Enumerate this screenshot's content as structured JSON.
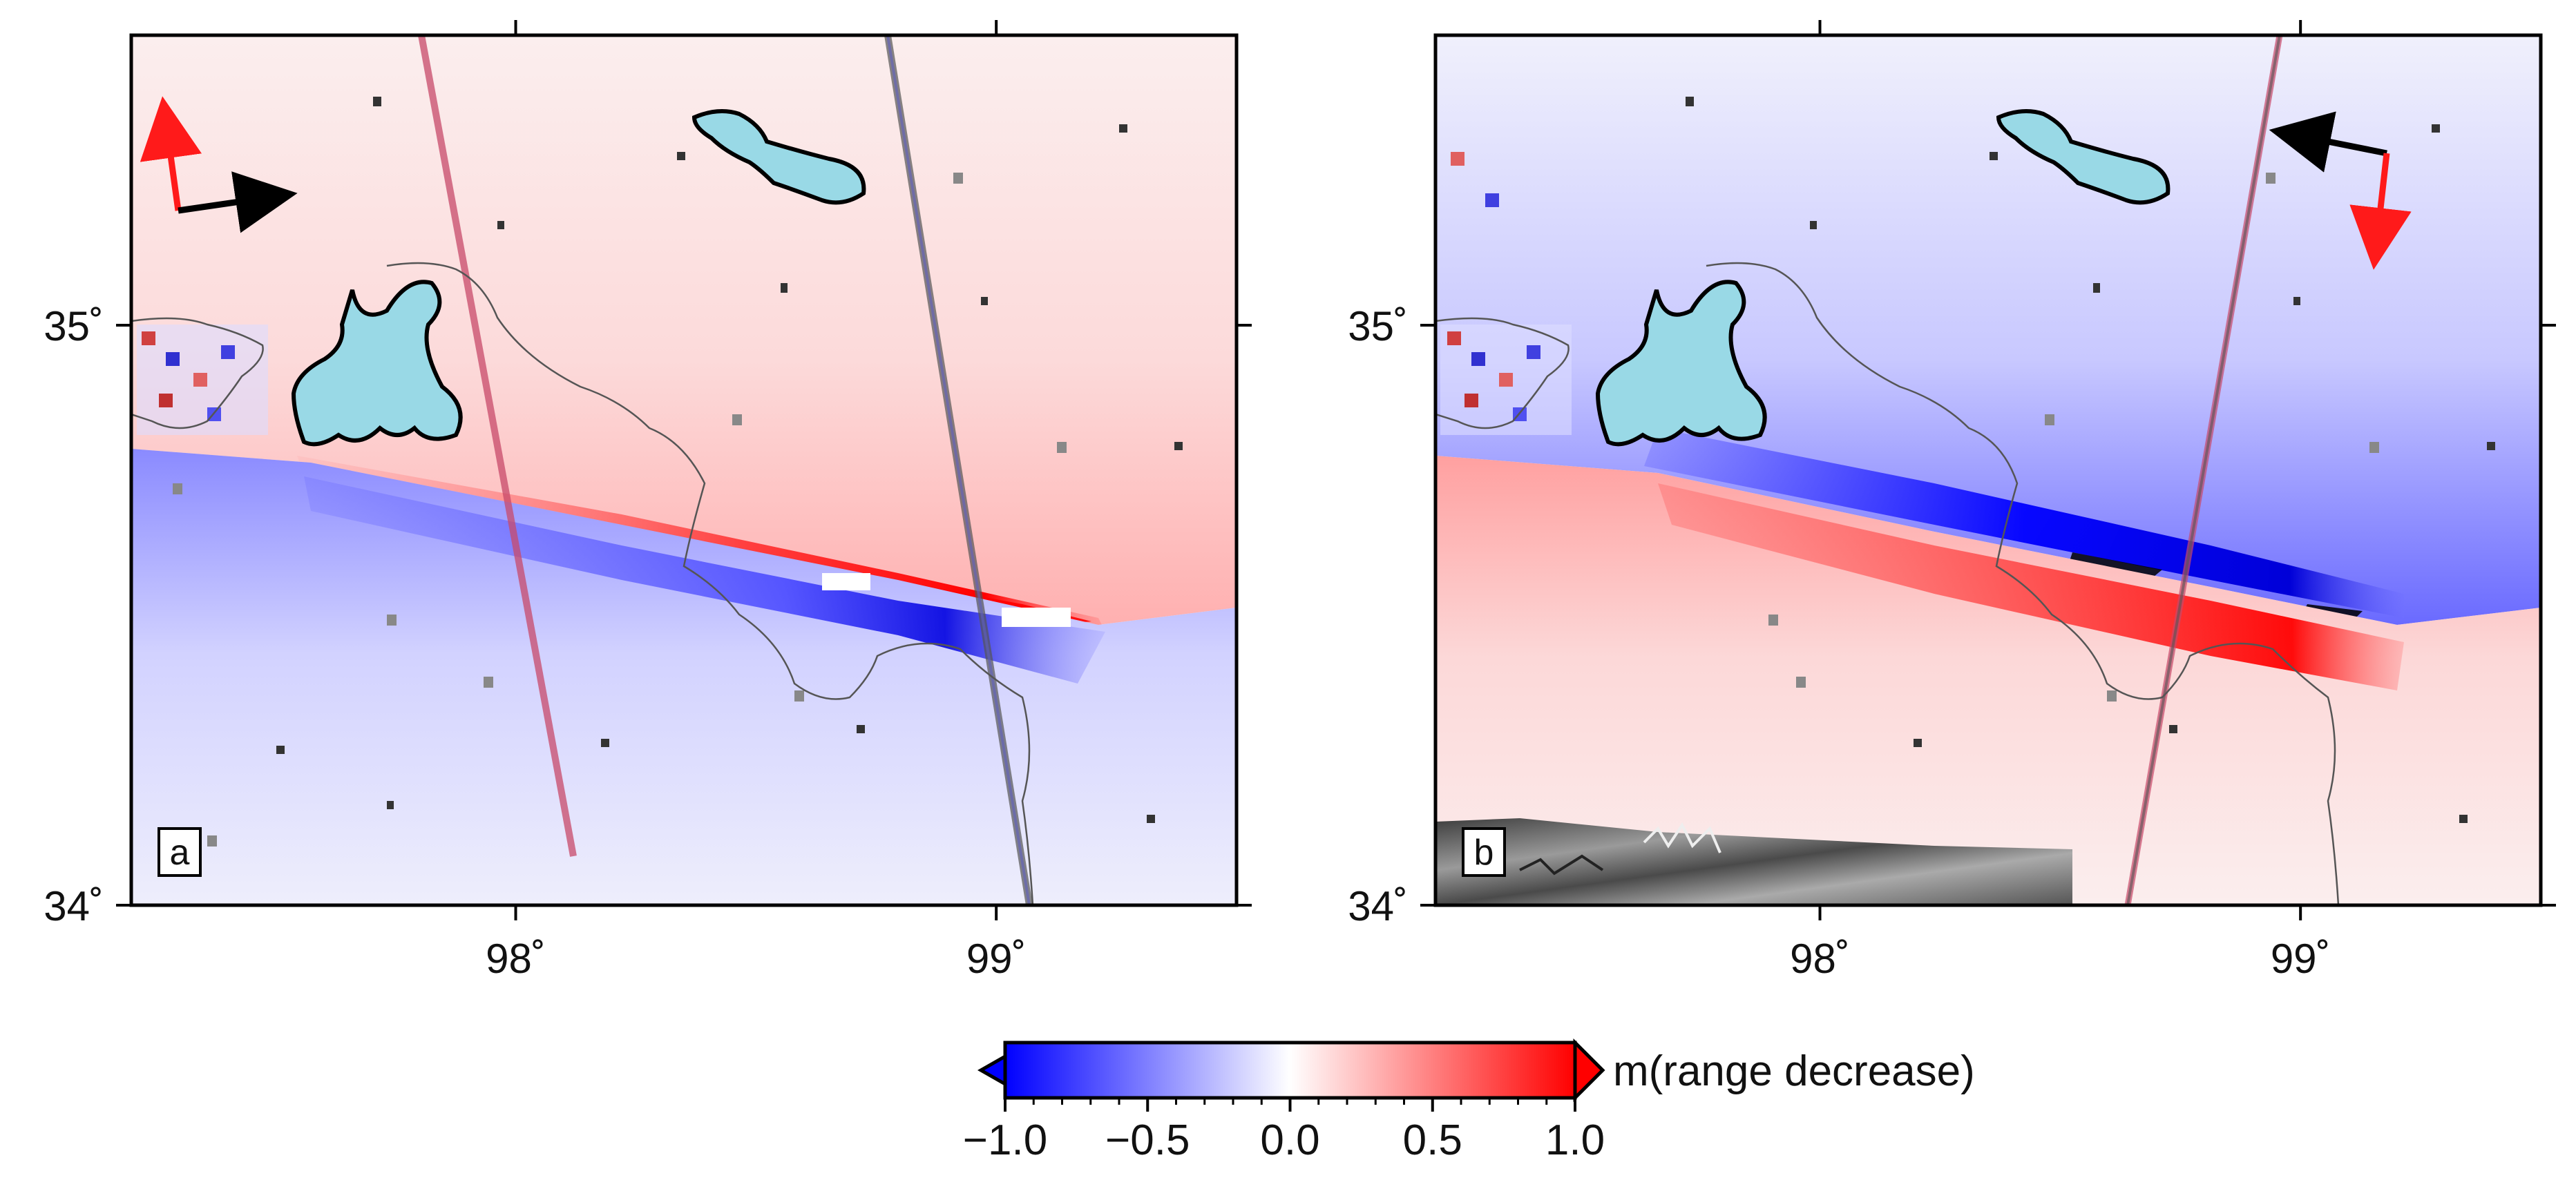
{
  "panels": [
    {
      "id": "a",
      "label": "a",
      "dominant_side": "north-positive",
      "topography_shading": false
    },
    {
      "id": "b",
      "label": "b",
      "dominant_side": "north-negative",
      "topography_shading": true
    }
  ],
  "axes": {
    "x_ticks": [
      {
        "value": 98,
        "label": "98˚"
      },
      {
        "value": 99,
        "label": "99˚"
      }
    ],
    "y_ticks": [
      {
        "value": 35,
        "label": "35˚"
      },
      {
        "value": 34,
        "label": "34˚"
      }
    ],
    "lon_range": [
      97.2,
      99.5
    ],
    "lat_range": [
      34.0,
      35.5
    ]
  },
  "colorbar": {
    "ticks": [
      "−1.0",
      "−0.5",
      "0.0",
      "0.5",
      "1.0"
    ],
    "range": [
      -1.0,
      1.0
    ],
    "unit_label": "m(range decrease)",
    "colors": {
      "negative": "#0000ff",
      "zero": "#ffffff",
      "positive": "#ff0000"
    }
  },
  "colors": {
    "lake_fill": "#99d9e6",
    "lake_outline": "#000000",
    "border_line": "#555555",
    "arrow_flight": "#000000",
    "arrow_look": "#ff1a1a"
  }
}
